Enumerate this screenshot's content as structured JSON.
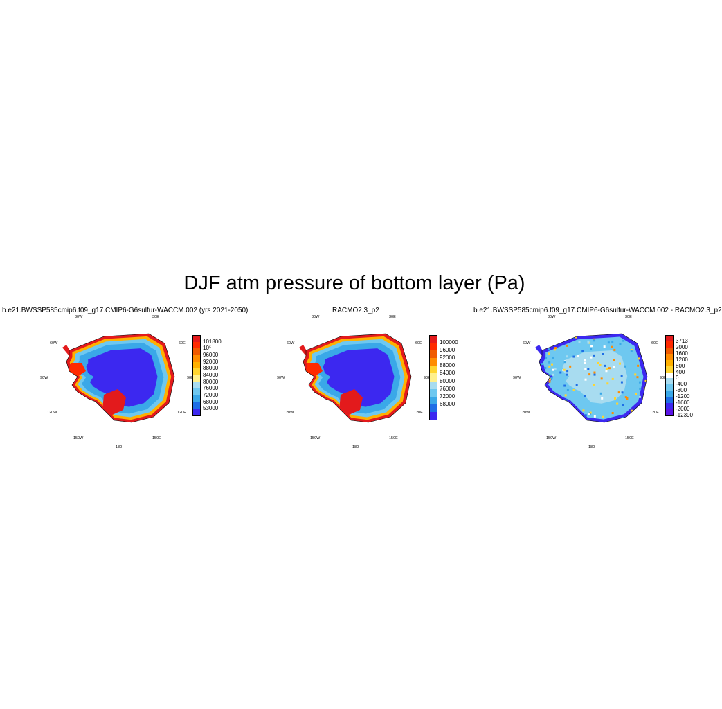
{
  "title": "DJF atm pressure of bottom layer (Pa)",
  "lon_labels": {
    "w30": "30W",
    "e30": "30E",
    "w60": "60W",
    "e60": "60E",
    "w90": "90W",
    "e90": "90E",
    "w120": "120W",
    "e120": "120E",
    "w150": "150W",
    "e150": "150E",
    "s180": "180"
  },
  "panels": [
    {
      "title": "b.e21.BWSSP585cmip6.f09_g17.CMIP6-G6sulfur-WACCM.002 (yrs 2021-2050)",
      "kind": "abs",
      "colorbar": {
        "labels": [
          "101800",
          "10⁵",
          "96000",
          "92000",
          "88000",
          "84000",
          "80000",
          "76000",
          "72000",
          "68000",
          "53000"
        ],
        "colors": [
          "#e31a1c",
          "#ff2a00",
          "#f05a00",
          "#ff8c00",
          "#ffb000",
          "#ffd530",
          "#fff08c",
          "#a8dcf0",
          "#6ec8f0",
          "#3aa8e8",
          "#1e6ee6",
          "#3c28f0"
        ]
      }
    },
    {
      "title": "RACMO2.3_p2",
      "kind": "abs",
      "colorbar": {
        "labels": [
          "100000",
          "96000",
          "92000",
          "88000",
          "84000",
          "80000",
          "76000",
          "72000",
          "68000"
        ],
        "colors": [
          "#e31a1c",
          "#ff2a00",
          "#f05a00",
          "#ff8c00",
          "#ffd530",
          "#fff08c",
          "#a8dcf0",
          "#6ec8f0",
          "#3aa8e8",
          "#1e6ee6",
          "#3c28f0"
        ]
      }
    },
    {
      "title": "b.e21.BWSSP585cmip6.f09_g17.CMIP6-G6sulfur-WACCM.002 - RACMO2.3_p2",
      "kind": "diff",
      "colorbar": {
        "labels": [
          "3713",
          "2000",
          "1600",
          "1200",
          "800",
          "400",
          "0",
          "-400",
          "-800",
          "-1200",
          "-1600",
          "-2000",
          "-12390"
        ],
        "colors": [
          "#e31a1c",
          "#ff2a00",
          "#f05a00",
          "#ff8c00",
          "#ffb000",
          "#ffd530",
          "#ffffff",
          "#a8dcf0",
          "#6ec8f0",
          "#3aa8e8",
          "#1e6ee6",
          "#3c28f0",
          "#5a14e6"
        ]
      }
    }
  ]
}
